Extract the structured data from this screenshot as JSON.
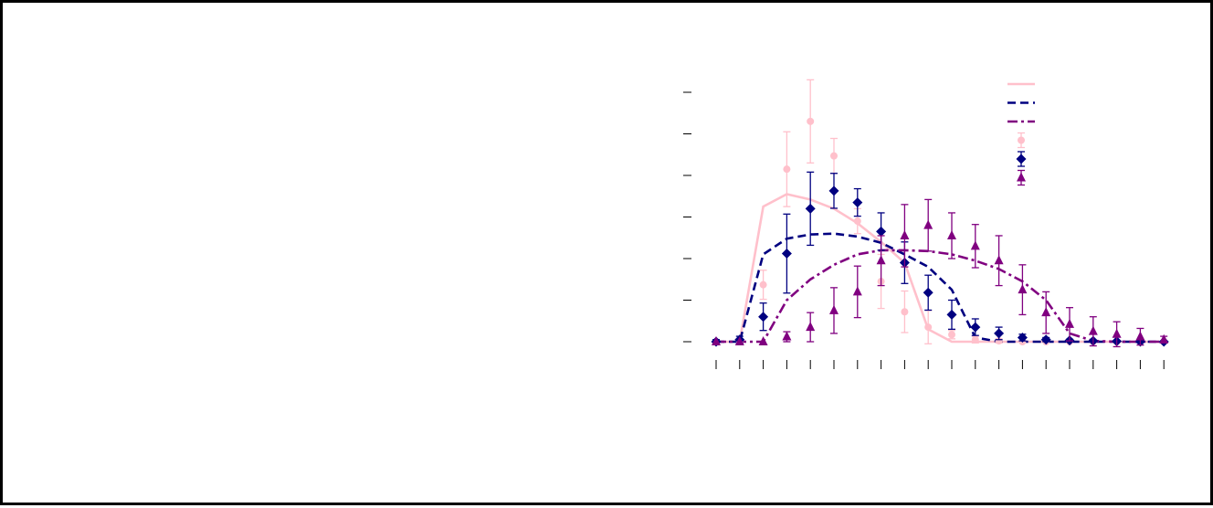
{
  "chart_data": {
    "type": "line",
    "title": "",
    "xlabel": "",
    "ylabel": "",
    "x": [
      0,
      1,
      2,
      3,
      4,
      5,
      6,
      7,
      8,
      9,
      10,
      11,
      12,
      13,
      14,
      15,
      16,
      17,
      18,
      19
    ],
    "ylim": [
      0,
      6
    ],
    "y_ticks": [
      0,
      1,
      2,
      3,
      4,
      5,
      6
    ],
    "legend_position": "top-right",
    "series": [
      {
        "kind": "line",
        "style": "solid",
        "color": "#ffc0cb",
        "values": [
          0,
          0,
          3.25,
          3.55,
          3.42,
          3.2,
          2.85,
          2.4,
          1.9,
          0.3,
          0,
          0,
          0,
          0,
          0,
          0,
          0,
          0,
          0,
          0
        ]
      },
      {
        "kind": "line",
        "style": "dashed",
        "color": "#000080",
        "values": [
          0,
          0,
          2.1,
          2.48,
          2.58,
          2.6,
          2.53,
          2.38,
          2.1,
          1.8,
          1.25,
          0.1,
          0,
          0,
          0,
          0,
          0,
          0,
          0,
          0
        ]
      },
      {
        "kind": "line",
        "style": "dash-dot",
        "color": "#800080",
        "values": [
          0,
          0,
          0,
          1.0,
          1.5,
          1.85,
          2.1,
          2.2,
          2.2,
          2.18,
          2.1,
          1.95,
          1.75,
          1.45,
          1.0,
          0.2,
          0.02,
          0,
          0,
          0
        ]
      },
      {
        "kind": "points",
        "marker": "circle",
        "color": "#ffc0cb",
        "values": [
          0,
          0,
          1.37,
          4.15,
          5.3,
          4.47,
          2.9,
          1.45,
          0.72,
          0.35,
          0.17,
          0.05,
          0.02,
          0,
          0,
          0,
          0,
          0,
          0,
          0
        ],
        "errors": [
          0,
          0,
          0.35,
          0.9,
          1.0,
          0.42,
          0.3,
          0.65,
          0.5,
          0.4,
          0.1,
          0.08,
          0.05,
          0,
          0,
          0,
          0,
          0,
          0,
          0
        ]
      },
      {
        "kind": "points",
        "marker": "diamond",
        "color": "#000080",
        "values": [
          0,
          0.05,
          0.6,
          2.12,
          3.2,
          3.63,
          3.35,
          2.65,
          1.9,
          1.18,
          0.65,
          0.35,
          0.2,
          0.1,
          0.05,
          0.03,
          0.02,
          0.01,
          0,
          0
        ],
        "errors": [
          0.05,
          0.08,
          0.33,
          0.95,
          0.88,
          0.42,
          0.33,
          0.45,
          0.5,
          0.42,
          0.35,
          0.2,
          0.15,
          0.08,
          0.05,
          0.03,
          0.02,
          0.01,
          0,
          0
        ],
        "colors": [
          "#000080",
          "#000080",
          "#000080",
          "#000080",
          "#000080",
          "#000080",
          "#000080",
          "#000080",
          "#000080",
          "#000080",
          "#000080",
          "#000080",
          "#000080",
          "#000080",
          "#000080",
          "#000080",
          "#000080",
          "#000080",
          "#000080",
          "#000080"
        ]
      },
      {
        "kind": "points",
        "marker": "triangle",
        "color": "#800080",
        "values": [
          0,
          0,
          0,
          0.12,
          0.35,
          0.75,
          1.2,
          1.95,
          2.55,
          2.8,
          2.55,
          2.3,
          1.95,
          1.25,
          0.7,
          0.42,
          0.25,
          0.18,
          0.12,
          0.05
        ],
        "errors": [
          0,
          0,
          0,
          0.12,
          0.35,
          0.55,
          0.62,
          0.6,
          0.75,
          0.62,
          0.55,
          0.52,
          0.6,
          0.6,
          0.5,
          0.4,
          0.35,
          0.3,
          0.2,
          0.08
        ]
      }
    ]
  }
}
